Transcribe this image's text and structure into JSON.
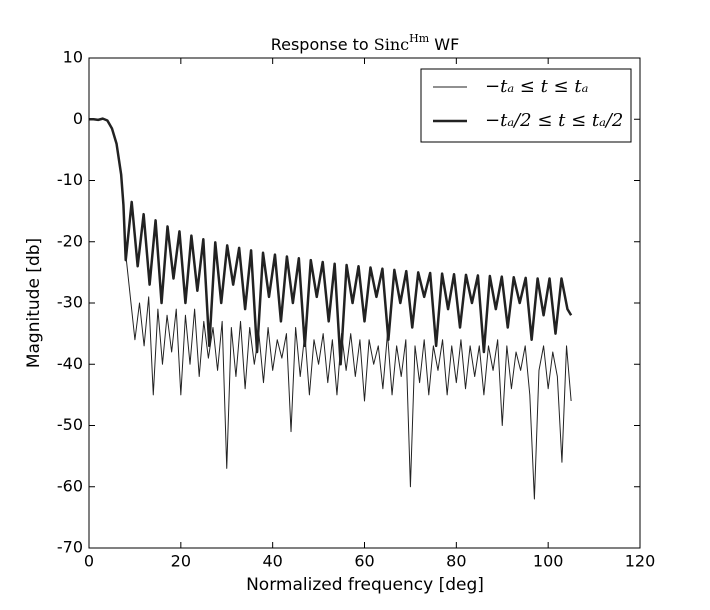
{
  "chart_data": {
    "type": "line",
    "title": {
      "prefix": "Response to",
      "base": "Sinc",
      "superscript": "Hm",
      "suffix": "WF"
    },
    "xlabel": "Normalized frequency [deg]",
    "ylabel": "Magnitude [db]",
    "xlim": [
      0,
      120
    ],
    "ylim": [
      -70,
      10
    ],
    "xticks": [
      0,
      20,
      40,
      60,
      80,
      100,
      120
    ],
    "yticks": [
      -70,
      -60,
      -50,
      -40,
      -30,
      -20,
      -10,
      0,
      10
    ],
    "legend": "upper right",
    "series": [
      {
        "name": "−tₐ ≤ t ≤ tₐ",
        "color": "#222222",
        "linewidth": 1,
        "x": [
          0,
          1,
          2,
          3,
          4,
          5,
          6,
          7,
          7.5,
          8,
          9,
          10,
          11,
          12,
          13,
          14,
          15,
          16,
          17,
          18,
          19,
          20,
          21,
          22,
          23,
          24,
          25,
          26,
          27,
          28,
          29,
          30,
          31,
          32,
          33,
          34,
          35,
          36,
          37,
          38,
          39,
          40,
          41,
          42,
          43,
          44,
          45,
          46,
          47,
          48,
          49,
          50,
          51,
          52,
          53,
          54,
          55,
          56,
          57,
          58,
          59,
          60,
          61,
          62,
          63,
          64,
          65,
          66,
          67,
          68,
          69,
          70,
          71,
          72,
          73,
          74,
          75,
          76,
          77,
          78,
          79,
          80,
          81,
          82,
          83,
          84,
          85,
          86,
          87,
          88,
          89,
          90,
          91,
          92,
          93,
          94,
          95,
          96,
          97,
          98,
          99,
          100,
          101,
          102,
          103,
          104,
          105
        ],
        "values": [
          0,
          0,
          -0.1,
          0.1,
          -0.2,
          -1.5,
          -4,
          -9,
          -14,
          -22,
          -29,
          -36,
          -30,
          -37,
          -29,
          -45,
          -31,
          -40,
          -32,
          -38,
          -31,
          -45,
          -32,
          -40,
          -31,
          -42,
          -33,
          -39,
          -34,
          -41,
          -33,
          -57,
          -34,
          -42,
          -33,
          -44,
          -34,
          -40,
          -35,
          -43,
          -34,
          -41,
          -36,
          -39,
          -35,
          -51,
          -34,
          -42,
          -35,
          -45,
          -36,
          -40,
          -35,
          -43,
          -36,
          -45,
          -35,
          -41,
          -35,
          -42,
          -36,
          -46,
          -36,
          -40,
          -37,
          -44,
          -35,
          -45,
          -37,
          -42,
          -36,
          -60,
          -37,
          -43,
          -36,
          -45,
          -37,
          -41,
          -36,
          -45,
          -37,
          -43,
          -36,
          -44,
          -37,
          -42,
          -37,
          -45,
          -37,
          -41,
          -36,
          -50,
          -37,
          -44,
          -38,
          -41,
          -37,
          -45,
          -62,
          -41,
          -37,
          -44,
          -38,
          -42,
          -56,
          -37,
          -46
        ]
      },
      {
        "name": "−tₐ/2 ≤ t ≤ tₐ/2",
        "color": "#222222",
        "linewidth": 2.5,
        "x": [
          0,
          1,
          2,
          3,
          4,
          5,
          6,
          7,
          7.5,
          8,
          9.3,
          10.6,
          11.9,
          13.2,
          14.5,
          15.8,
          17.1,
          18.4,
          19.7,
          21,
          22.3,
          23.6,
          24.9,
          26.2,
          27.5,
          28.8,
          30.1,
          31.4,
          32.7,
          34,
          35.3,
          36.6,
          37.9,
          39.2,
          40.5,
          41.8,
          43.1,
          44.4,
          45.7,
          47,
          48.3,
          49.6,
          50.9,
          52.2,
          53.5,
          54.8,
          56.1,
          57.4,
          58.7,
          60,
          61.3,
          62.6,
          63.9,
          65.2,
          66.5,
          67.8,
          69.1,
          70.4,
          71.7,
          73,
          74.3,
          75.6,
          76.9,
          78.2,
          79.5,
          80.8,
          82.1,
          83.4,
          84.7,
          86,
          87.3,
          88.6,
          89.9,
          91.2,
          92.5,
          93.8,
          95.1,
          96.4,
          97.7,
          99,
          100.3,
          101.6,
          102.9,
          104.2,
          105
        ],
        "values": [
          0,
          0,
          -0.1,
          0.1,
          -0.2,
          -1.5,
          -4,
          -9,
          -14,
          -23,
          -13.5,
          -24,
          -15.5,
          -27,
          -16.5,
          -30,
          -17.5,
          -26,
          -18.3,
          -30,
          -19,
          -28,
          -19.6,
          -37,
          -20.1,
          -30,
          -20.6,
          -27,
          -21,
          -31,
          -21.4,
          -38,
          -21.8,
          -29,
          -22.1,
          -33,
          -22.4,
          -30,
          -22.7,
          -37,
          -23,
          -29,
          -23.3,
          -33,
          -23.6,
          -40,
          -23.8,
          -30,
          -24,
          -33,
          -24.2,
          -29,
          -24.4,
          -36,
          -24.6,
          -30,
          -24.8,
          -34,
          -25,
          -29,
          -25.1,
          -37,
          -25.2,
          -31,
          -25.3,
          -34,
          -25.4,
          -30,
          -25.5,
          -38,
          -25.6,
          -31,
          -25.7,
          -34,
          -25.8,
          -30,
          -25.9,
          -36,
          -26,
          -32,
          -26,
          -35,
          -26,
          -31,
          -32
        ]
      }
    ]
  }
}
